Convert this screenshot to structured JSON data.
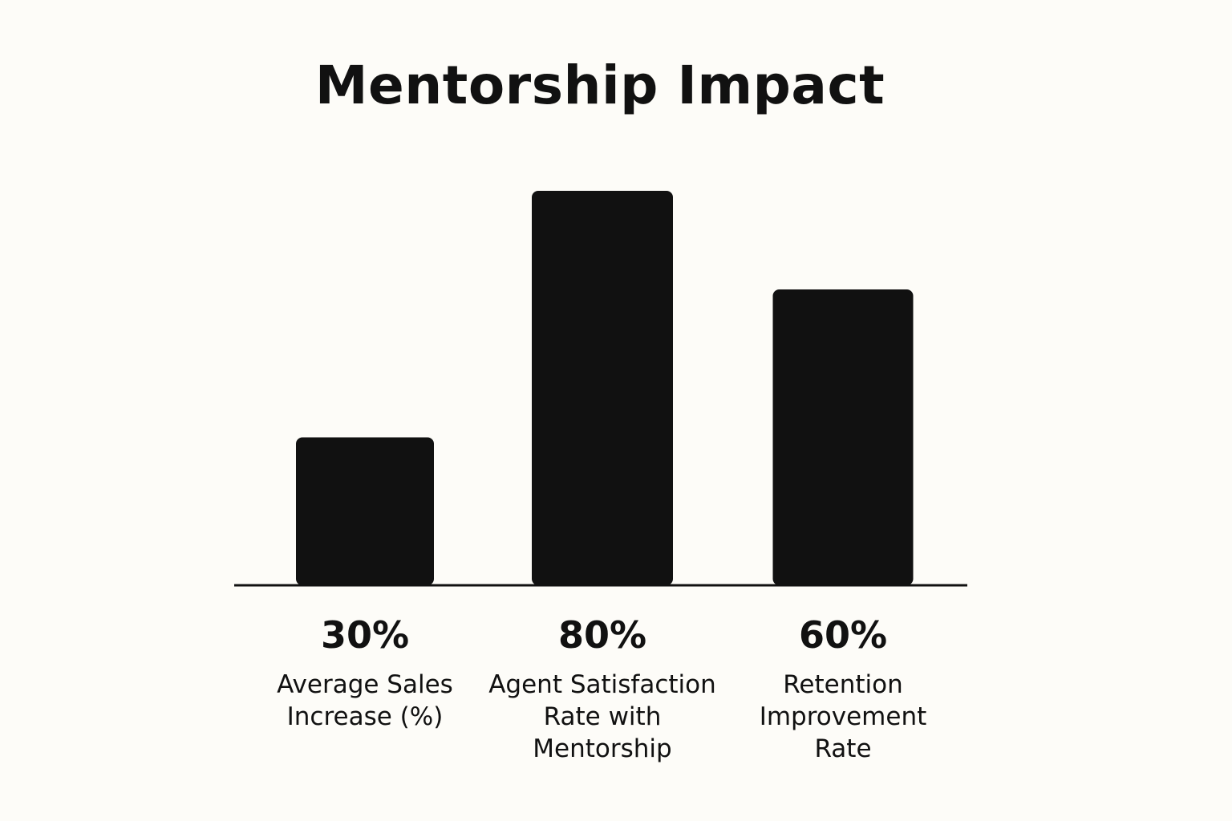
{
  "chart_data": {
    "type": "bar",
    "title": "Mentorship Impact",
    "categories": [
      "Average Sales Increase (%)",
      "Agent Satisfaction Rate with Mentorship",
      "Retention Improvement Rate"
    ],
    "category_lines": [
      [
        "Average Sales",
        "Increase (%)"
      ],
      [
        "Agent Satisfaction",
        "Rate with",
        "Mentorship"
      ],
      [
        "Retention",
        "Improvement",
        "Rate"
      ]
    ],
    "values": [
      30,
      80,
      60
    ],
    "value_labels": [
      "30%",
      "80%",
      "60%"
    ],
    "xlabel": "",
    "ylabel": "",
    "ylim": [
      0,
      100
    ],
    "grid": false,
    "bar_color": "#111111",
    "background_color": "#fdfcf8"
  }
}
